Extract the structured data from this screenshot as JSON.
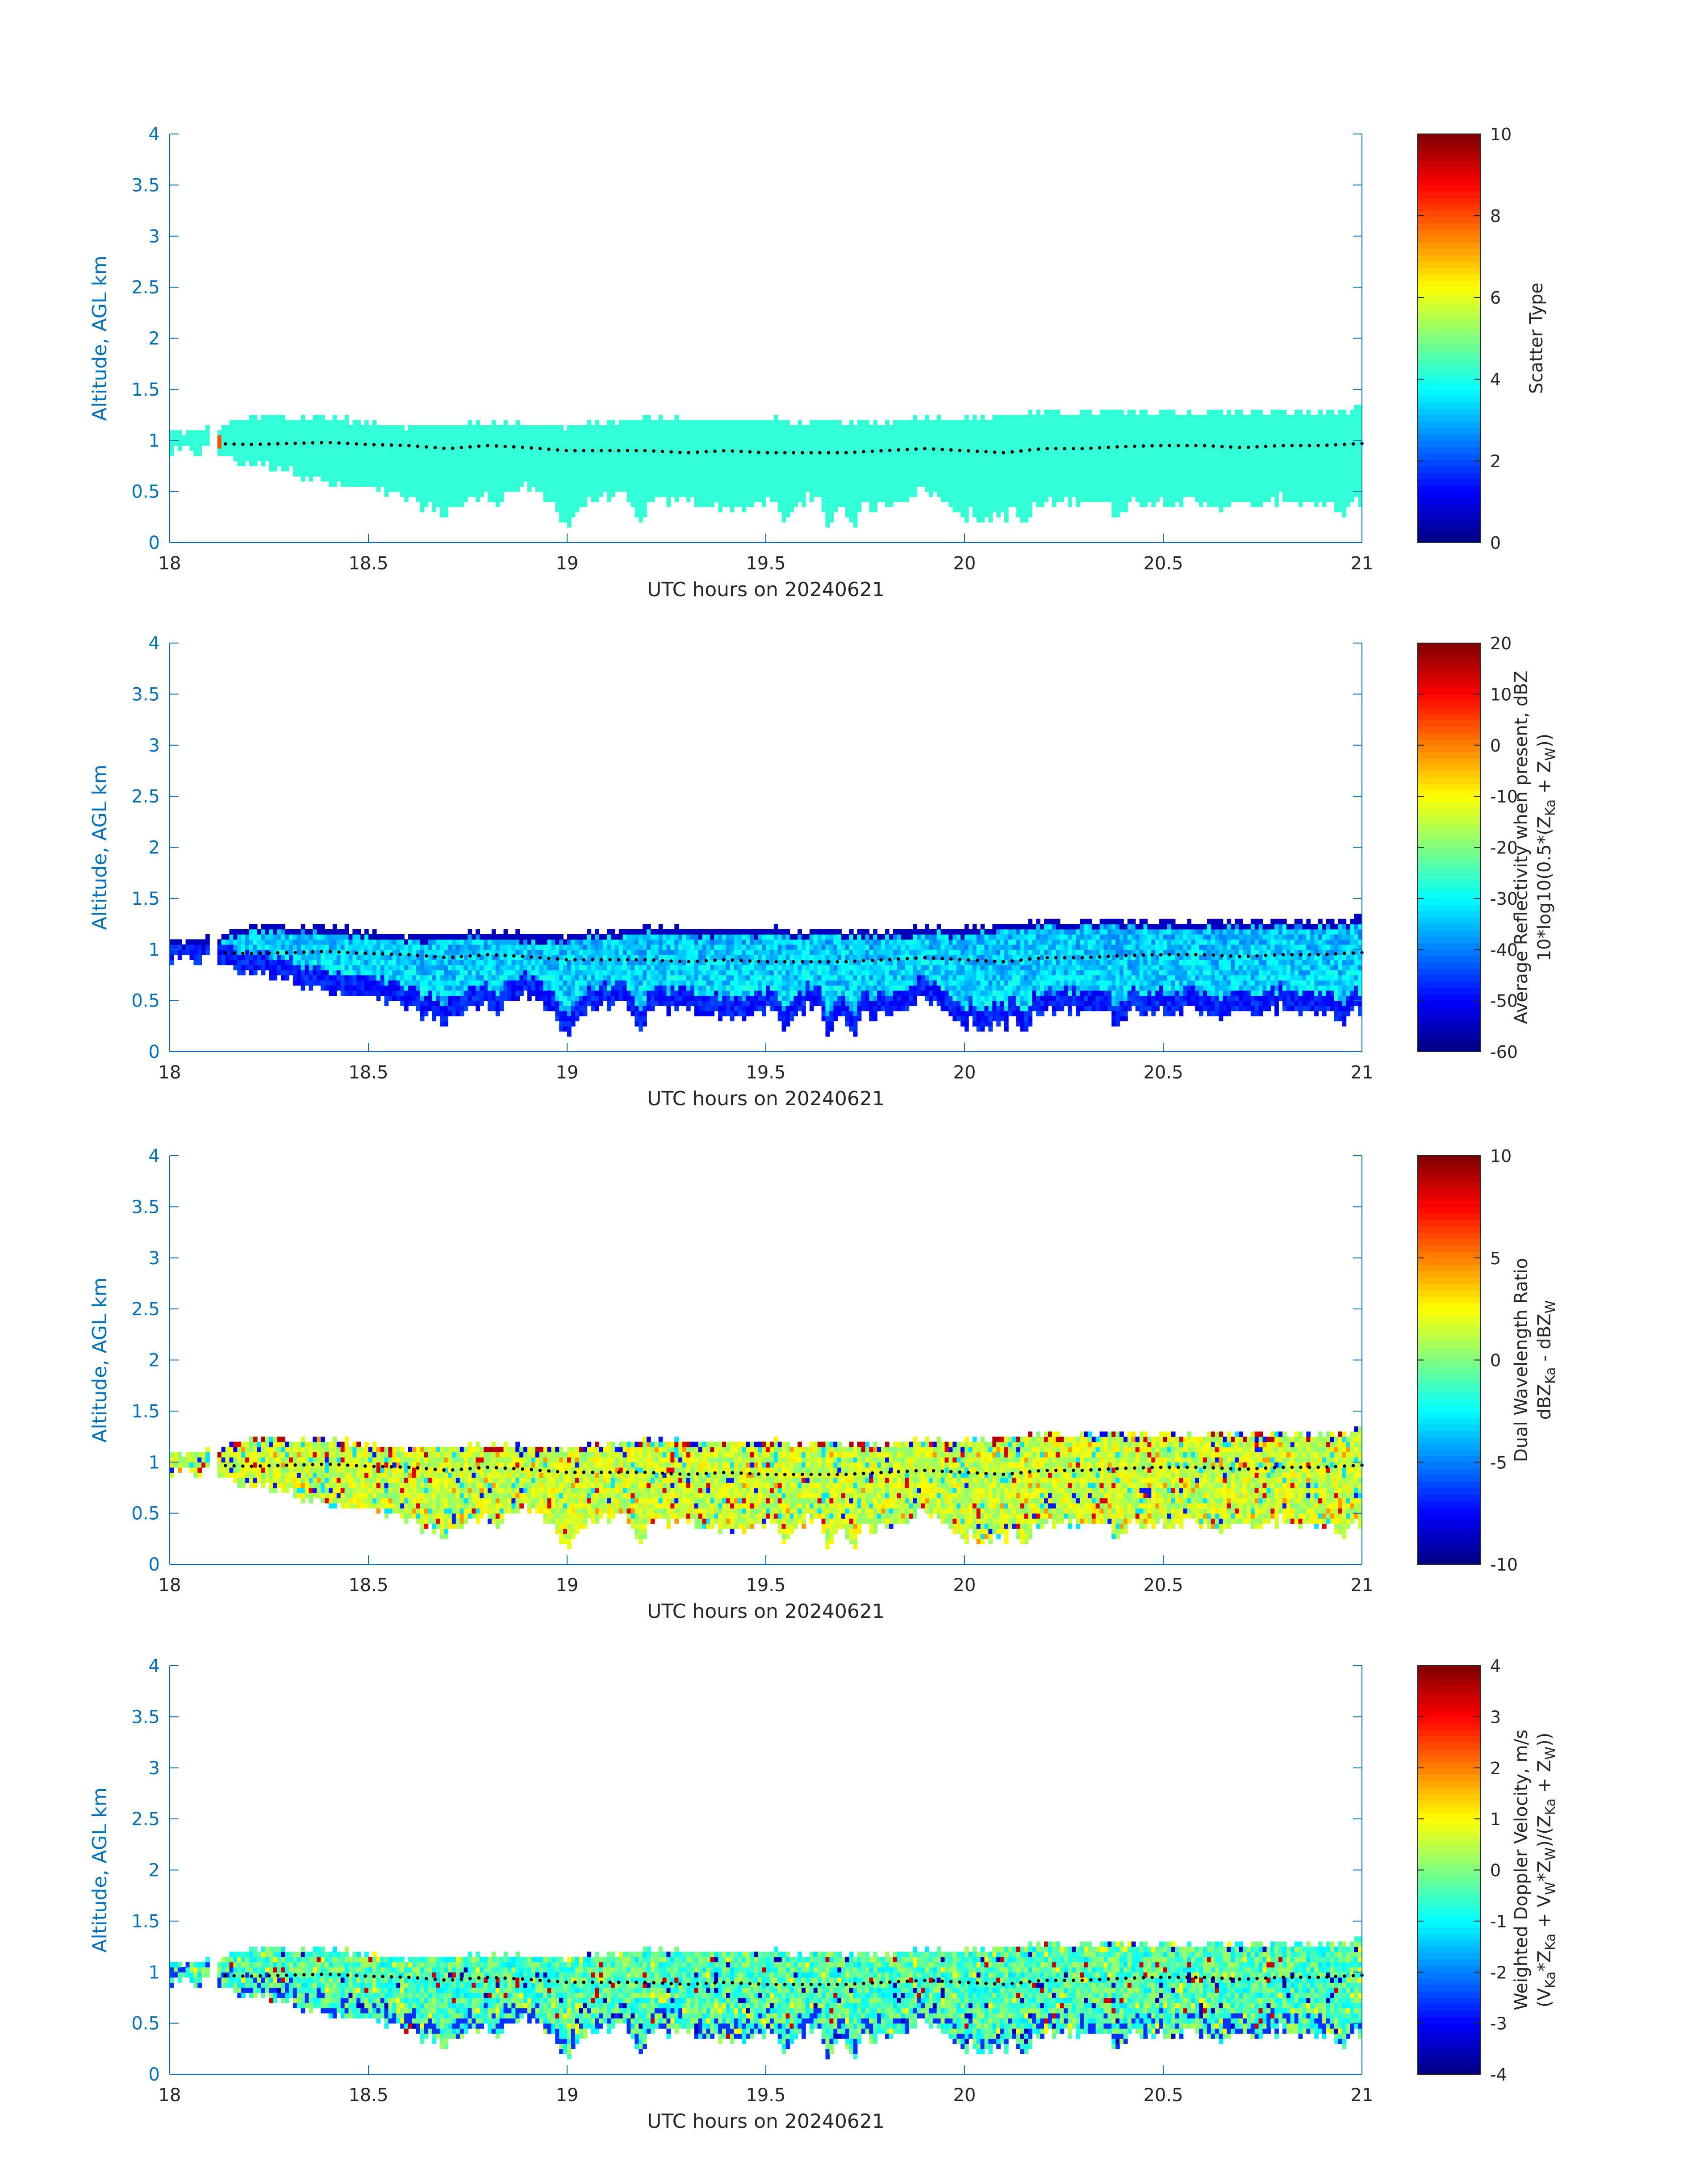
{
  "figure": {
    "colors": {
      "axis_ticks": "#0072BD",
      "black": "#000000",
      "cloud_fill": "#33FFD6",
      "scatter_red": "#E0301E"
    }
  },
  "chart_data": [
    {
      "type": "heatmap",
      "panel": "scatter-type",
      "xlabel": "UTC hours on 20240621",
      "ylabel": "Altitude, AGL km",
      "xlim": [
        18,
        21
      ],
      "ylim": [
        0,
        4
      ],
      "xticks": [
        "18",
        "18.5",
        "19",
        "19.5",
        "20",
        "20.5",
        "21"
      ],
      "yticks": [
        "0",
        "0.5",
        "1",
        "1.5",
        "2",
        "2.5",
        "3",
        "3.5",
        "4"
      ],
      "grid": false,
      "colorbar": {
        "label_lines": [
          "Scatter Type"
        ],
        "clim": [
          0,
          10
        ],
        "ticks": [
          "0",
          "2",
          "4",
          "6",
          "8",
          "10"
        ],
        "colormap": "jet"
      },
      "cloud_value": 4,
      "notes_values": {
        "red_block_near_hour": 18.12,
        "red_block_value": 8
      }
    },
    {
      "type": "heatmap",
      "panel": "reflectivity",
      "xlabel": "UTC hours on 20240621",
      "ylabel": "Altitude, AGL km",
      "xlim": [
        18,
        21
      ],
      "ylim": [
        0,
        4
      ],
      "xticks": [
        "18",
        "18.5",
        "19",
        "19.5",
        "20",
        "20.5",
        "21"
      ],
      "yticks": [
        "0",
        "0.5",
        "1",
        "1.5",
        "2",
        "2.5",
        "3",
        "3.5",
        "4"
      ],
      "grid": false,
      "colorbar": {
        "label_lines": [
          "Average Reflectivity when present, dBZ",
          "10*log10(0.5*(Z",
          "Ka",
          " + Z",
          "W",
          "))"
        ],
        "clim": [
          -60,
          20
        ],
        "ticks": [
          "-60",
          "-50",
          "-40",
          "-30",
          "-20",
          "-10",
          "0",
          "10",
          "20"
        ],
        "colormap": "jet"
      }
    },
    {
      "type": "heatmap",
      "panel": "dwr",
      "xlabel": "UTC hours on 20240621",
      "ylabel": "Altitude, AGL km",
      "xlim": [
        18,
        21
      ],
      "ylim": [
        0,
        4
      ],
      "xticks": [
        "18",
        "18.5",
        "19",
        "19.5",
        "20",
        "20.5",
        "21"
      ],
      "yticks": [
        "0",
        "0.5",
        "1",
        "1.5",
        "2",
        "2.5",
        "3",
        "3.5",
        "4"
      ],
      "grid": false,
      "colorbar": {
        "label_lines": [
          "Dual Wavelength Ratio",
          "dBZ",
          "Ka",
          " - dBZ",
          "W"
        ],
        "clim": [
          -10,
          10
        ],
        "ticks": [
          "-10",
          "-5",
          "0",
          "5",
          "10"
        ],
        "colormap": "jet"
      }
    },
    {
      "type": "heatmap",
      "panel": "doppler",
      "xlabel": "UTC hours on 20240621",
      "ylabel": "Altitude, AGL km",
      "xlim": [
        18,
        21
      ],
      "ylim": [
        0,
        4
      ],
      "xticks": [
        "18",
        "18.5",
        "19",
        "19.5",
        "20",
        "20.5",
        "21"
      ],
      "yticks": [
        "0",
        "0.5",
        "1",
        "1.5",
        "2",
        "2.5",
        "3",
        "3.5",
        "4"
      ],
      "grid": false,
      "colorbar": {
        "label_lines": [
          "Weighted Doppler Velocity, m/s",
          "(V",
          "Ka",
          "*Z",
          "Ka",
          " + V",
          "W",
          "*Z",
          "W",
          ")/(Z",
          "Ka",
          " + Z",
          "W",
          "))"
        ],
        "clim": [
          -4,
          4
        ],
        "ticks": [
          "-4",
          "-3",
          "-2",
          "-1",
          "0",
          "1",
          "2",
          "3",
          "4"
        ],
        "colormap": "jet"
      }
    }
  ],
  "cloud_profile": {
    "hours": [
      18.0,
      18.1,
      18.2,
      18.3,
      18.4,
      18.5,
      18.6,
      18.7,
      18.8,
      18.9,
      19.0,
      19.1,
      19.2,
      19.3,
      19.4,
      19.5,
      19.6,
      19.7,
      19.8,
      19.9,
      20.0,
      20.1,
      20.2,
      20.3,
      20.4,
      20.5,
      20.6,
      20.7,
      20.8,
      20.9,
      21.0
    ],
    "top_km": [
      1.05,
      1.08,
      1.2,
      1.2,
      1.2,
      1.15,
      1.12,
      1.12,
      1.15,
      1.12,
      1.12,
      1.15,
      1.2,
      1.18,
      1.18,
      1.18,
      1.15,
      1.15,
      1.15,
      1.2,
      1.18,
      1.22,
      1.25,
      1.25,
      1.25,
      1.25,
      1.25,
      1.25,
      1.25,
      1.25,
      1.28
    ],
    "base_km": [
      0.92,
      0.92,
      0.8,
      0.75,
      0.6,
      0.55,
      0.45,
      0.35,
      0.5,
      0.55,
      0.3,
      0.5,
      0.4,
      0.45,
      0.35,
      0.4,
      0.45,
      0.35,
      0.4,
      0.55,
      0.3,
      0.3,
      0.4,
      0.45,
      0.4,
      0.45,
      0.4,
      0.4,
      0.45,
      0.4,
      0.45
    ],
    "base_dips": [
      [
        18.63,
        0.35
      ],
      [
        18.68,
        0.3
      ],
      [
        18.82,
        0.4
      ],
      [
        19.0,
        0.18
      ],
      [
        19.18,
        0.18
      ],
      [
        19.55,
        0.18
      ],
      [
        19.66,
        0.2
      ],
      [
        19.72,
        0.22
      ],
      [
        20.05,
        0.18
      ],
      [
        20.15,
        0.2
      ],
      [
        20.38,
        0.28
      ],
      [
        20.75,
        0.35
      ],
      [
        20.95,
        0.2
      ],
      [
        20.98,
        0.4
      ]
    ],
    "gap_hours": [
      [
        18.1,
        18.12
      ]
    ],
    "dotted_line_km": [
      0.97,
      0.97,
      0.96,
      0.97,
      0.98,
      0.96,
      0.95,
      0.92,
      0.95,
      0.93,
      0.9,
      0.9,
      0.9,
      0.88,
      0.9,
      0.88,
      0.88,
      0.88,
      0.9,
      0.92,
      0.9,
      0.88,
      0.92,
      0.92,
      0.94,
      0.95,
      0.95,
      0.93,
      0.95,
      0.95,
      0.97
    ]
  }
}
